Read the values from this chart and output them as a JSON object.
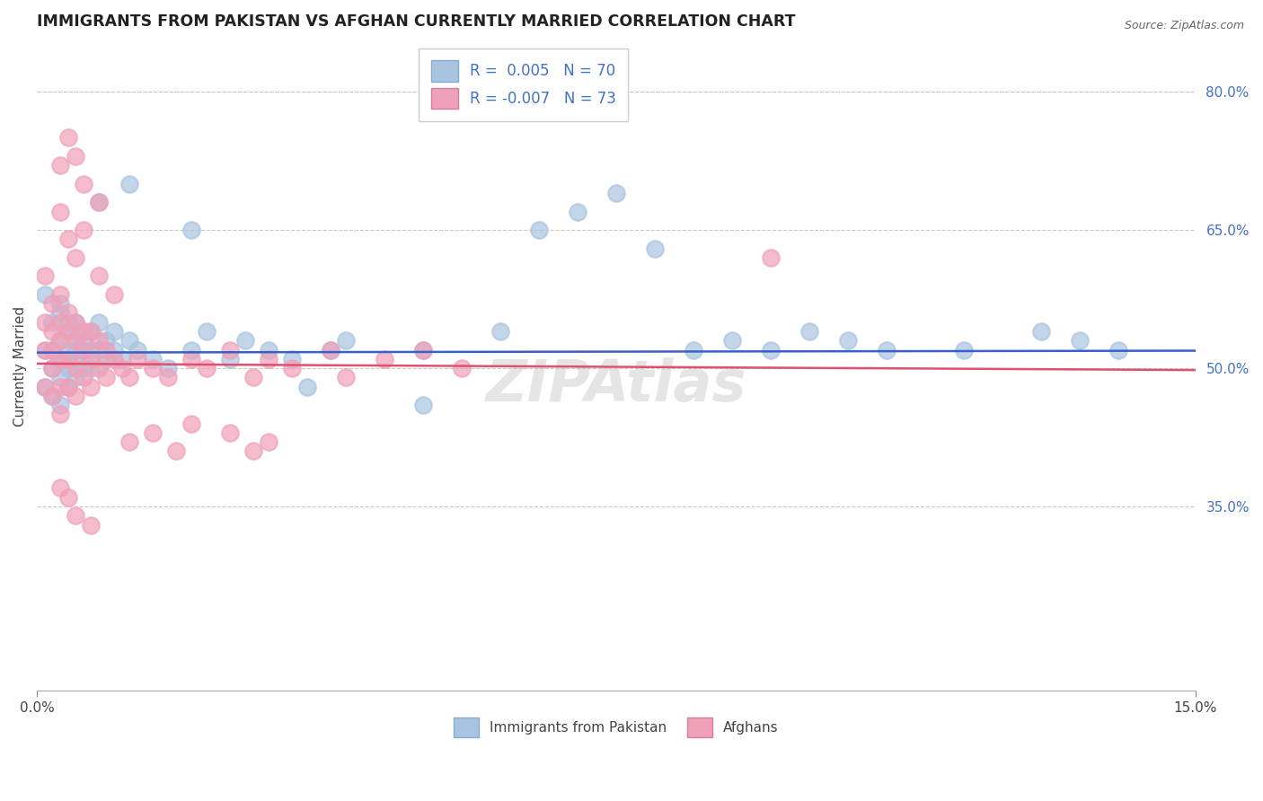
{
  "title": "IMMIGRANTS FROM PAKISTAN VS AFGHAN CURRENTLY MARRIED CORRELATION CHART",
  "source": "Source: ZipAtlas.com",
  "ylabel": "Currently Married",
  "xlim": [
    0.0,
    0.15
  ],
  "ylim": [
    0.15,
    0.855
  ],
  "pakistan_color": "#a8c4e0",
  "afghan_color": "#f0a0b8",
  "pakistan_line_color": "#3a5fcd",
  "afghan_line_color": "#e05070",
  "pakistan_R": 0.005,
  "pakistan_N": 70,
  "afghan_R": -0.007,
  "afghan_N": 73,
  "watermark": "ZIPAtlas",
  "background_color": "#ffffff",
  "grid_color": "#c8c8c8",
  "pakistan_x": [
    0.001,
    0.001,
    0.001,
    0.002,
    0.002,
    0.002,
    0.002,
    0.003,
    0.003,
    0.003,
    0.003,
    0.003,
    0.003,
    0.004,
    0.004,
    0.004,
    0.004,
    0.004,
    0.005,
    0.005,
    0.005,
    0.005,
    0.005,
    0.006,
    0.006,
    0.006,
    0.006,
    0.007,
    0.007,
    0.007,
    0.008,
    0.008,
    0.009,
    0.009,
    0.01,
    0.01,
    0.011,
    0.012,
    0.013,
    0.015,
    0.017,
    0.02,
    0.022,
    0.025,
    0.027,
    0.03,
    0.033,
    0.038,
    0.04,
    0.05,
    0.06,
    0.065,
    0.07,
    0.075,
    0.08,
    0.085,
    0.09,
    0.095,
    0.1,
    0.105,
    0.11,
    0.12,
    0.13,
    0.135,
    0.14,
    0.008,
    0.012,
    0.02,
    0.035,
    0.05
  ],
  "pakistan_y": [
    0.58,
    0.52,
    0.48,
    0.55,
    0.52,
    0.5,
    0.47,
    0.56,
    0.53,
    0.51,
    0.49,
    0.46,
    0.57,
    0.54,
    0.52,
    0.5,
    0.48,
    0.55,
    0.53,
    0.51,
    0.49,
    0.55,
    0.52,
    0.54,
    0.52,
    0.5,
    0.53,
    0.54,
    0.52,
    0.5,
    0.55,
    0.52,
    0.53,
    0.51,
    0.54,
    0.52,
    0.51,
    0.53,
    0.52,
    0.51,
    0.5,
    0.52,
    0.54,
    0.51,
    0.53,
    0.52,
    0.51,
    0.52,
    0.53,
    0.52,
    0.54,
    0.65,
    0.67,
    0.69,
    0.63,
    0.52,
    0.53,
    0.52,
    0.54,
    0.53,
    0.52,
    0.52,
    0.54,
    0.53,
    0.52,
    0.68,
    0.7,
    0.65,
    0.48,
    0.46
  ],
  "afghan_x": [
    0.001,
    0.001,
    0.001,
    0.001,
    0.002,
    0.002,
    0.002,
    0.002,
    0.002,
    0.003,
    0.003,
    0.003,
    0.003,
    0.003,
    0.003,
    0.004,
    0.004,
    0.004,
    0.004,
    0.005,
    0.005,
    0.005,
    0.005,
    0.006,
    0.006,
    0.006,
    0.007,
    0.007,
    0.007,
    0.008,
    0.008,
    0.009,
    0.009,
    0.01,
    0.011,
    0.012,
    0.013,
    0.015,
    0.017,
    0.02,
    0.022,
    0.025,
    0.028,
    0.03,
    0.033,
    0.038,
    0.04,
    0.045,
    0.05,
    0.055,
    0.003,
    0.004,
    0.005,
    0.006,
    0.008,
    0.01,
    0.012,
    0.015,
    0.018,
    0.02,
    0.025,
    0.028,
    0.03,
    0.003,
    0.004,
    0.005,
    0.006,
    0.008,
    0.003,
    0.004,
    0.005,
    0.007,
    0.095
  ],
  "afghan_y": [
    0.6,
    0.55,
    0.52,
    0.48,
    0.57,
    0.54,
    0.52,
    0.5,
    0.47,
    0.58,
    0.55,
    0.53,
    0.51,
    0.48,
    0.45,
    0.56,
    0.54,
    0.51,
    0.48,
    0.55,
    0.53,
    0.5,
    0.47,
    0.54,
    0.52,
    0.49,
    0.54,
    0.51,
    0.48,
    0.53,
    0.5,
    0.52,
    0.49,
    0.51,
    0.5,
    0.49,
    0.51,
    0.5,
    0.49,
    0.51,
    0.5,
    0.52,
    0.49,
    0.51,
    0.5,
    0.52,
    0.49,
    0.51,
    0.52,
    0.5,
    0.67,
    0.64,
    0.62,
    0.65,
    0.6,
    0.58,
    0.42,
    0.43,
    0.41,
    0.44,
    0.43,
    0.41,
    0.42,
    0.72,
    0.75,
    0.73,
    0.7,
    0.68,
    0.37,
    0.36,
    0.34,
    0.33,
    0.62
  ]
}
